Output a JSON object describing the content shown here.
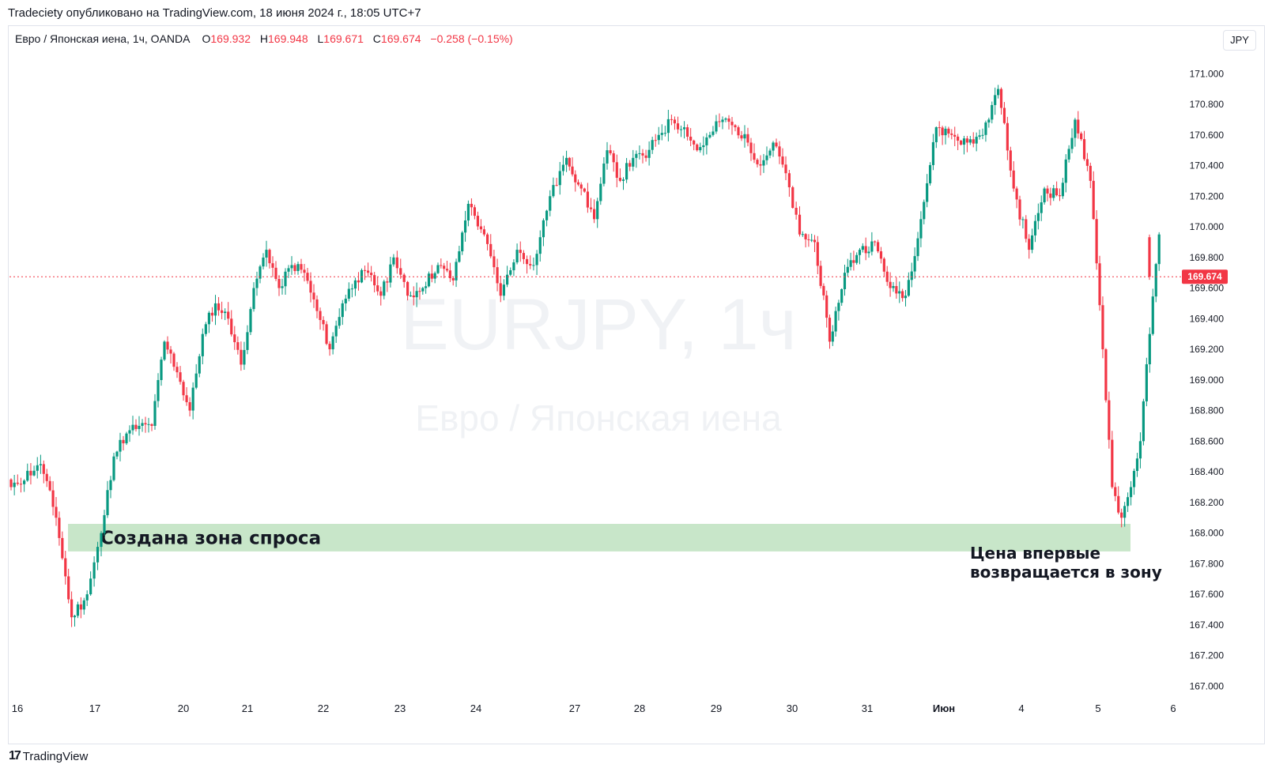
{
  "header": {
    "published": "Tradeciety опубликовано на TradingView.com, 18 июня 2024 г., 18:05 UTC+7"
  },
  "legend": {
    "symbol": "Евро / Японская иена, 1ч, OANDA",
    "o_label": "O",
    "o_value": "169.932",
    "h_label": "H",
    "h_value": "169.948",
    "l_label": "L",
    "l_value": "169.671",
    "c_label": "C",
    "c_value": "169.674",
    "change": "−0.258 (−0.15%)"
  },
  "currency_button": "JPY",
  "watermark": {
    "line1": "EURJPY, 1ч",
    "line2": "Евро / Японская иена"
  },
  "footer": {
    "brand": "TradingView"
  },
  "colors": {
    "up": "#089981",
    "down": "#f23645",
    "zone": "#c8e6c9",
    "price_line": "#f23645"
  },
  "chart_data": {
    "type": "candlestick",
    "timeframe": "1h",
    "x_tick_labels": [
      "16",
      "17",
      "20",
      "21",
      "22",
      "23",
      "24",
      "27",
      "28",
      "29",
      "30",
      "31",
      "Июн",
      "4",
      "5",
      "6"
    ],
    "y_ticks": [
      167.0,
      167.2,
      167.4,
      167.6,
      167.8,
      168.0,
      168.2,
      168.4,
      168.6,
      168.8,
      169.0,
      169.2,
      169.4,
      169.6,
      169.8,
      170.0,
      170.2,
      170.4,
      170.6,
      170.8,
      171.0
    ],
    "y_tick_labels": [
      "167.000",
      "167.200",
      "167.400",
      "167.600",
      "167.800",
      "168.000",
      "168.200",
      "168.400",
      "168.600",
      "168.800",
      "169.000",
      "169.200",
      "169.400",
      "169.600",
      "169.800",
      "170.000",
      "170.200",
      "170.400",
      "170.600",
      "170.800",
      "171.000"
    ],
    "ylim": [
      166.94,
      171.12
    ],
    "last_price": 169.674,
    "last_price_label": "169.674",
    "demand_zone": {
      "low": 167.88,
      "high": 168.06,
      "start": "17",
      "end": "5",
      "label": "Создана зона спроса"
    },
    "annotation": {
      "line1": "Цена впервые",
      "line2": "возвращается в зону"
    },
    "anchors": [
      [
        "16",
        168.3
      ],
      [
        "16",
        168.45
      ],
      [
        "16",
        168.1
      ],
      [
        "16",
        167.45
      ],
      [
        "16",
        167.6
      ],
      [
        "17",
        168.0
      ],
      [
        "17",
        168.5
      ],
      [
        "17",
        168.65
      ],
      [
        "17",
        168.7
      ],
      [
        "17",
        168.7
      ],
      [
        "17",
        169.25
      ],
      [
        "17",
        169.05
      ],
      [
        "20",
        168.8
      ],
      [
        "20",
        169.3
      ],
      [
        "20",
        169.5
      ],
      [
        "20",
        169.4
      ],
      [
        "20",
        169.1
      ],
      [
        "21",
        169.6
      ],
      [
        "21",
        169.85
      ],
      [
        "21",
        169.6
      ],
      [
        "21",
        169.75
      ],
      [
        "21",
        169.7
      ],
      [
        "21",
        169.45
      ],
      [
        "22",
        169.2
      ],
      [
        "22",
        169.5
      ],
      [
        "22",
        169.65
      ],
      [
        "22",
        169.7
      ],
      [
        "22",
        169.55
      ],
      [
        "22",
        169.8
      ],
      [
        "23",
        169.55
      ],
      [
        "23",
        169.6
      ],
      [
        "23",
        169.75
      ],
      [
        "23",
        169.65
      ],
      [
        "23",
        170.15
      ],
      [
        "24",
        169.95
      ],
      [
        "24",
        169.55
      ],
      [
        "24",
        169.85
      ],
      [
        "24",
        169.75
      ],
      [
        "24",
        170.2
      ],
      [
        "24",
        170.45
      ],
      [
        "27",
        170.25
      ],
      [
        "27",
        170.05
      ],
      [
        "27",
        170.5
      ],
      [
        "27",
        170.3
      ],
      [
        "27",
        170.45
      ],
      [
        "28",
        170.45
      ],
      [
        "28",
        170.6
      ],
      [
        "28",
        170.7
      ],
      [
        "28",
        170.65
      ],
      [
        "28",
        170.5
      ],
      [
        "28",
        170.6
      ],
      [
        "29",
        170.7
      ],
      [
        "29",
        170.65
      ],
      [
        "29",
        170.55
      ],
      [
        "29",
        170.4
      ],
      [
        "29",
        170.55
      ],
      [
        "29",
        170.35
      ],
      [
        "30",
        169.95
      ],
      [
        "30",
        169.9
      ],
      [
        "30",
        169.25
      ],
      [
        "30",
        169.7
      ],
      [
        "30",
        169.85
      ],
      [
        "31",
        169.9
      ],
      [
        "31",
        169.6
      ],
      [
        "31",
        169.55
      ],
      [
        "31",
        170.05
      ],
      [
        "31",
        170.65
      ],
      [
        "Июн",
        170.6
      ],
      [
        "Июн",
        170.55
      ],
      [
        "Июн",
        170.6
      ],
      [
        "Июн",
        170.9
      ],
      [
        "Июн",
        170.25
      ],
      [
        "4",
        169.85
      ],
      [
        "4",
        170.25
      ],
      [
        "4",
        170.2
      ],
      [
        "4",
        170.7
      ],
      [
        "4",
        170.3
      ],
      [
        "5",
        169.2
      ],
      [
        "5",
        168.3
      ],
      [
        "5",
        168.1
      ],
      [
        "5",
        168.3
      ],
      [
        "5",
        168.6
      ],
      [
        "5",
        169.3
      ],
      [
        "5",
        169.95
      ],
      [
        "5",
        169.674
      ]
    ]
  }
}
